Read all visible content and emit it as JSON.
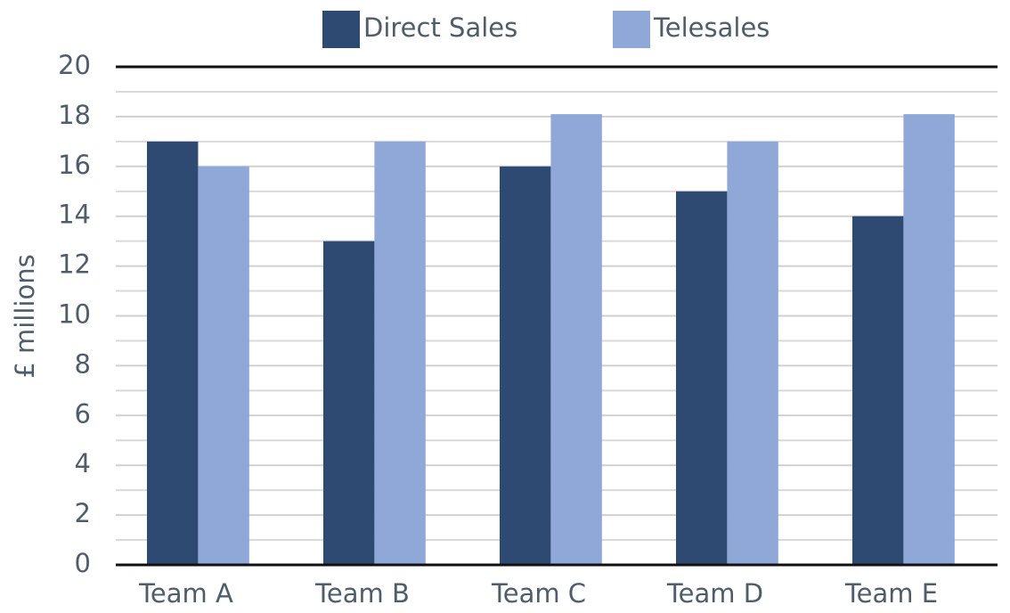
{
  "chart_data": {
    "type": "bar",
    "y_label": "£ millions",
    "categories": [
      "Team A",
      "Team B",
      "Team C",
      "Team D",
      "Team E"
    ],
    "series": [
      {
        "name": "Direct Sales",
        "color": "#2e4a72",
        "values": [
          17,
          13,
          16,
          15,
          14
        ]
      },
      {
        "name": "Telesales",
        "color": "#8fa8d8",
        "values": [
          16,
          17,
          18.1,
          17,
          18.1
        ]
      }
    ],
    "ylim": [
      0,
      20
    ],
    "yticks": [
      0,
      2,
      4,
      6,
      8,
      10,
      12,
      14,
      16,
      18,
      20
    ],
    "yminor_ticks": [
      1,
      3,
      5,
      7,
      9,
      11,
      13,
      15,
      17,
      19
    ],
    "grid": true,
    "legend": "top"
  }
}
